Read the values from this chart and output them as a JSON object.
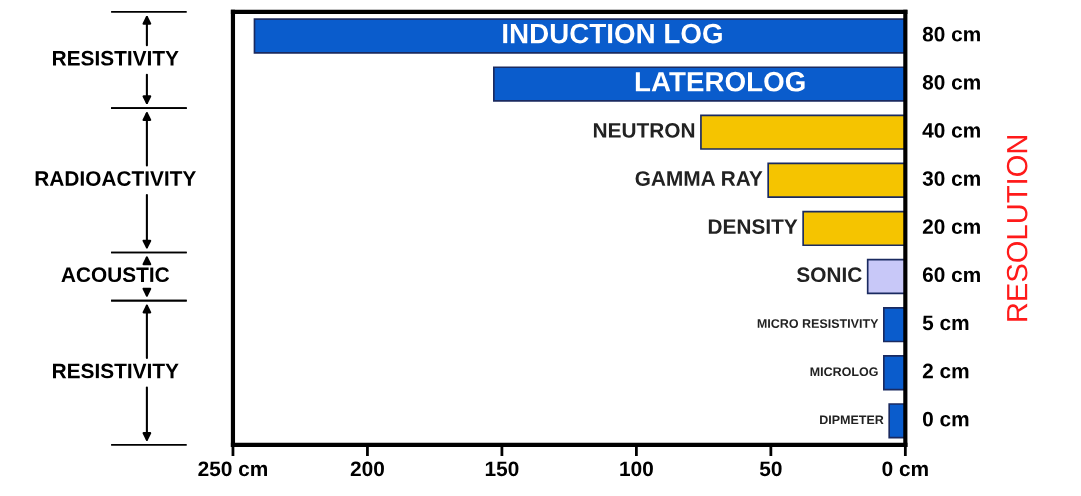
{
  "chart_data": {
    "type": "bar",
    "orientation": "horizontal",
    "categories": [
      "INDUCTION LOG",
      "LATEROLOG",
      "NEUTRON",
      "GAMMA RAY",
      "DENSITY",
      "SONIC",
      "MICRO RESISTIVITY",
      "MICROLOG",
      "DIPMETER"
    ],
    "values": [
      242,
      153,
      76,
      51,
      38,
      14,
      8,
      8,
      6
    ],
    "colors": [
      "#0a5ccc",
      "#0a5ccc",
      "#f5c400",
      "#f5c400",
      "#f5c400",
      "#c8c8f8",
      "#0a5ccc",
      "#0a5ccc",
      "#0a5ccc"
    ],
    "xlim": [
      250,
      0
    ],
    "xticks": [
      {
        "value": 250,
        "label": "250 cm"
      },
      200,
      150,
      100,
      50,
      {
        "value": 0,
        "label": "0 cm"
      }
    ],
    "y2label": "RESOLUTION",
    "annotations": [
      "RESISTIVITY",
      "RADIOACTIVITY",
      "ACOUSTIC",
      "RESISTIVITY",
      "80 cm",
      "80 cm",
      "40 cm",
      "30 cm",
      "20 cm",
      "60 cm",
      "5 cm",
      "2 cm",
      "0 cm"
    ],
    "grid": false
  }
}
